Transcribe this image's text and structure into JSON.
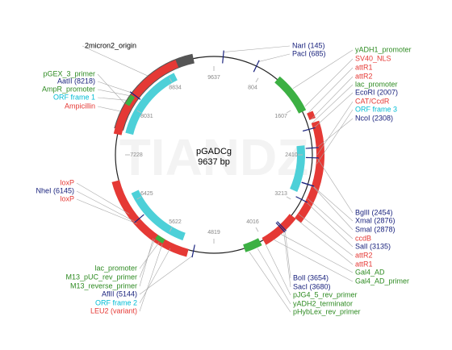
{
  "title": "pGADCg",
  "size": "9637 bp",
  "watermark": "TIANDZ",
  "ring_labels": [
    "9637",
    "804",
    "1607",
    "2410",
    "3213",
    "4016",
    "4819",
    "5622",
    "6425",
    "7228",
    "8031",
    "8834"
  ],
  "labels": [
    {
      "text": "2micron2_origin",
      "color": "#000000"
    },
    {
      "text": "pGEX_3_primer",
      "color": "#2e8b22"
    },
    {
      "text": "AatII (8218)",
      "color": "#1a237e"
    },
    {
      "text": "AmpR_promoter",
      "color": "#2e8b22"
    },
    {
      "text": "ORF frame 1",
      "color": "#00bcd4"
    },
    {
      "text": "Ampicillin",
      "color": "#e53935"
    },
    {
      "text": "NarI (145)",
      "color": "#1a237e"
    },
    {
      "text": "PacI (685)",
      "color": "#1a237e"
    },
    {
      "text": "yADH1_promoter",
      "color": "#2e8b22"
    },
    {
      "text": "SV40_NLS",
      "color": "#e53935"
    },
    {
      "text": "attR1",
      "color": "#e53935"
    },
    {
      "text": "attR2",
      "color": "#e53935"
    },
    {
      "text": "lac_promoter",
      "color": "#2e8b22"
    },
    {
      "text": "EcoRI (2007)",
      "color": "#1a237e"
    },
    {
      "text": "CAT/CcdR",
      "color": "#e53935"
    },
    {
      "text": "ORF frame 3",
      "color": "#00bcd4"
    },
    {
      "text": "NcoI (2308)",
      "color": "#1a237e"
    },
    {
      "text": "BglII (2454)",
      "color": "#1a237e"
    },
    {
      "text": "XmaI (2876)",
      "color": "#1a237e"
    },
    {
      "text": "SmaI (2878)",
      "color": "#1a237e"
    },
    {
      "text": "ccdB",
      "color": "#e53935"
    },
    {
      "text": "SalI (3135)",
      "color": "#1a237e"
    },
    {
      "text": "attR2",
      "color": "#e53935"
    },
    {
      "text": "attR1",
      "color": "#e53935"
    },
    {
      "text": "Gal4_AD",
      "color": "#2e8b22"
    },
    {
      "text": "Gal4_AD_primer",
      "color": "#2e8b22"
    },
    {
      "text": "loxP",
      "color": "#e53935"
    },
    {
      "text": "NheI (6145)",
      "color": "#1a237e"
    },
    {
      "text": "loxP",
      "color": "#e53935"
    },
    {
      "text": "lac_promoter",
      "color": "#2e8b22"
    },
    {
      "text": "M13_pUC_rev_primer",
      "color": "#2e8b22"
    },
    {
      "text": "M13_reverse_primer",
      "color": "#2e8b22"
    },
    {
      "text": "AflII (5144)",
      "color": "#1a237e"
    },
    {
      "text": "ORF frame 2",
      "color": "#00bcd4"
    },
    {
      "text": "LEU2 (variant)",
      "color": "#e53935"
    },
    {
      "text": "BolI (3654)",
      "color": "#1a237e"
    },
    {
      "text": "SacI (3680)",
      "color": "#1a237e"
    },
    {
      "text": "pJG4_5_rev_primer",
      "color": "#2e8b22"
    },
    {
      "text": "yADH2_terminator",
      "color": "#2e8b22"
    },
    {
      "text": "pHybLex_rev_primer",
      "color": "#2e8b22"
    }
  ]
}
